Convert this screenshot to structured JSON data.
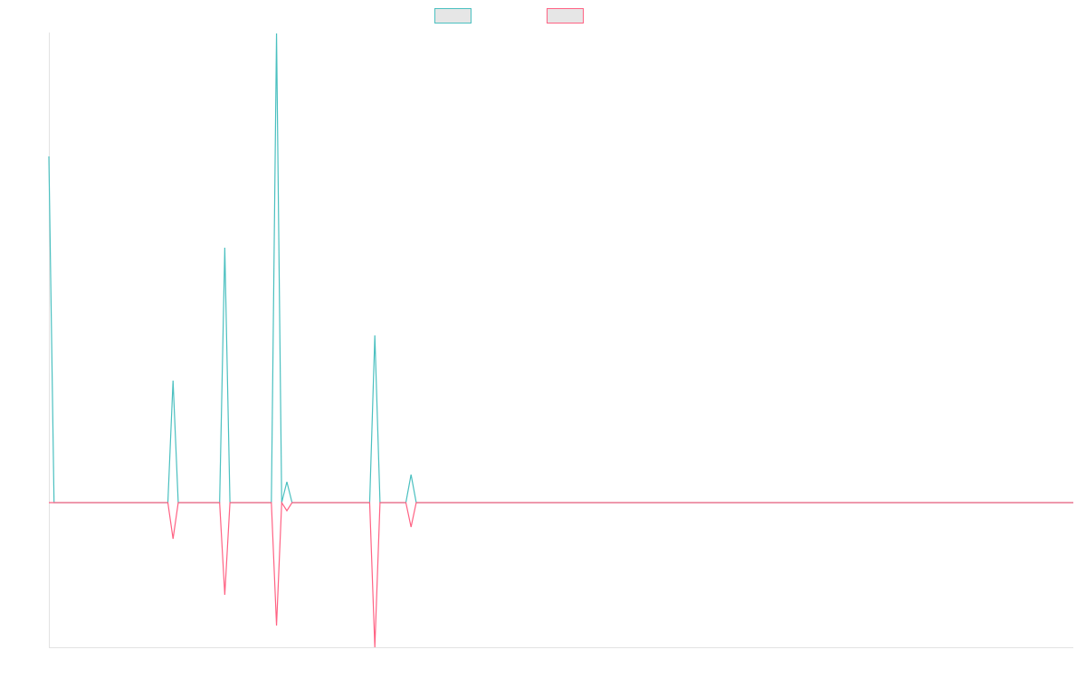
{
  "chart_data": {
    "type": "line",
    "x_count": 199,
    "ylim": [
      -160,
      520
    ],
    "grid": false,
    "legend_position": "top-center",
    "series": [
      {
        "color": "#4bc0c0",
        "fill": "#e6e6e6",
        "points": [
          [
            0,
            383
          ],
          [
            1,
            0
          ],
          [
            23,
            0
          ],
          [
            24,
            135
          ],
          [
            25,
            0
          ],
          [
            33,
            0
          ],
          [
            34,
            282
          ],
          [
            35,
            0
          ],
          [
            43,
            0
          ],
          [
            44,
            519
          ],
          [
            45,
            0
          ],
          [
            46,
            23
          ],
          [
            47,
            0
          ],
          [
            62,
            0
          ],
          [
            63,
            185
          ],
          [
            64,
            0
          ],
          [
            69,
            0
          ],
          [
            70,
            31
          ],
          [
            71,
            0
          ],
          [
            198,
            0
          ]
        ]
      },
      {
        "color": "#ff6384",
        "fill": "#e6e6e6",
        "points": [
          [
            0,
            0
          ],
          [
            23,
            0
          ],
          [
            24,
            -40
          ],
          [
            25,
            0
          ],
          [
            33,
            0
          ],
          [
            34,
            -102
          ],
          [
            35,
            0
          ],
          [
            43,
            0
          ],
          [
            44,
            -136
          ],
          [
            45,
            0
          ],
          [
            46,
            -9
          ],
          [
            47,
            0
          ],
          [
            62,
            0
          ],
          [
            63,
            -160
          ],
          [
            64,
            0
          ],
          [
            69,
            0
          ],
          [
            70,
            -27
          ],
          [
            71,
            0
          ],
          [
            198,
            0
          ]
        ]
      }
    ]
  }
}
